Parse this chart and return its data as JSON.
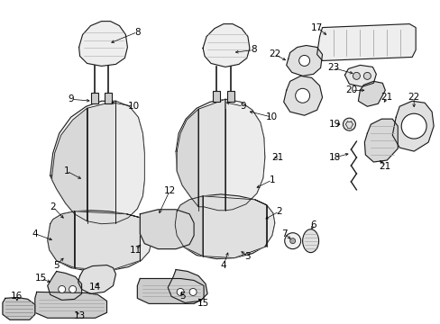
{
  "background_color": "#ffffff",
  "line_color": "#1a1a1a",
  "figsize": [
    4.89,
    3.6
  ],
  "dpi": 100,
  "seat_fill": "#f5f5f5",
  "seat_panel_fill": "#e8e8e8",
  "seat_dark_fill": "#d8d8d8",
  "part_fill": "#efefef"
}
